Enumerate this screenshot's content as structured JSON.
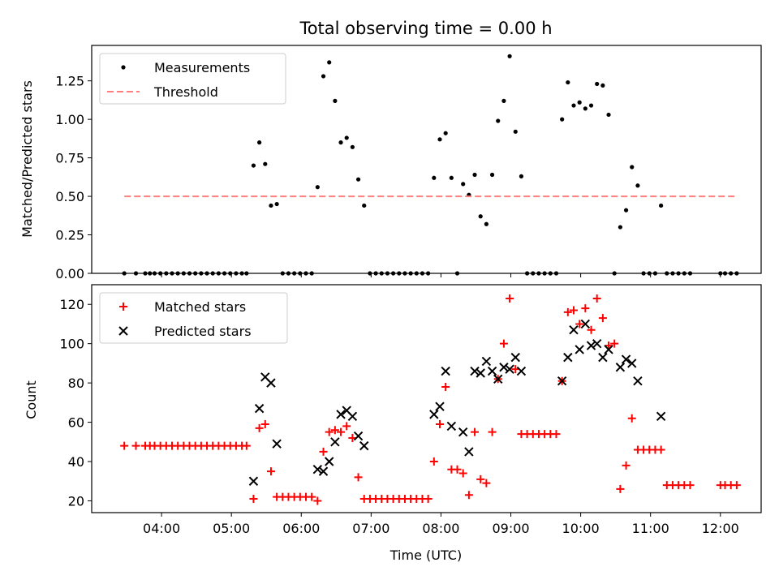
{
  "chart_data": [
    {
      "type": "scatter",
      "title": "Total observing time = 0.00 h",
      "xlabel": "",
      "ylabel": "Matched/Predicted stars",
      "xlim": [
        "03:00",
        "12:35"
      ],
      "ylim": [
        0,
        1.48
      ],
      "yticks": [
        0.0,
        0.25,
        0.5,
        0.75,
        1.0,
        1.25
      ],
      "ytick_labels": [
        "0.00",
        "0.25",
        "0.50",
        "0.75",
        "1.00",
        "1.25"
      ],
      "xticks": [
        "04:00",
        "05:00",
        "06:00",
        "07:00",
        "08:00",
        "09:00",
        "10:00",
        "11:00",
        "12:00"
      ],
      "legend": {
        "placement": "top-left",
        "entries": [
          "Measurements",
          "Threshold"
        ]
      },
      "series": [
        {
          "name": "Measurements",
          "marker": "dot",
          "color": "#000000",
          "points": [
            [
              "03:28",
              0
            ],
            [
              "03:38",
              0
            ],
            [
              "03:46",
              0
            ],
            [
              "03:50",
              0
            ],
            [
              "03:54",
              0
            ],
            [
              "03:59",
              0
            ],
            [
              "04:04",
              0
            ],
            [
              "04:09",
              0
            ],
            [
              "04:14",
              0
            ],
            [
              "04:19",
              0
            ],
            [
              "04:24",
              0
            ],
            [
              "04:29",
              0
            ],
            [
              "04:34",
              0
            ],
            [
              "04:39",
              0
            ],
            [
              "04:44",
              0
            ],
            [
              "04:49",
              0
            ],
            [
              "04:54",
              0
            ],
            [
              "04:59",
              0
            ],
            [
              "05:04",
              0
            ],
            [
              "05:09",
              0
            ],
            [
              "05:13",
              0
            ],
            [
              "05:19",
              0.7
            ],
            [
              "05:24",
              0.85
            ],
            [
              "05:29",
              0.71
            ],
            [
              "05:34",
              0.44
            ],
            [
              "05:39",
              0.45
            ],
            [
              "05:44",
              0
            ],
            [
              "05:49",
              0
            ],
            [
              "05:54",
              0
            ],
            [
              "05:59",
              0
            ],
            [
              "06:04",
              0
            ],
            [
              "06:09",
              0
            ],
            [
              "06:14",
              0.56
            ],
            [
              "06:19",
              1.28
            ],
            [
              "06:24",
              1.37
            ],
            [
              "06:29",
              1.12
            ],
            [
              "06:34",
              0.85
            ],
            [
              "06:39",
              0.88
            ],
            [
              "06:44",
              0.82
            ],
            [
              "06:49",
              0.61
            ],
            [
              "06:54",
              0.44
            ],
            [
              "06:59",
              0
            ],
            [
              "07:04",
              0
            ],
            [
              "07:09",
              0
            ],
            [
              "07:14",
              0
            ],
            [
              "07:19",
              0
            ],
            [
              "07:24",
              0
            ],
            [
              "07:29",
              0
            ],
            [
              "07:34",
              0
            ],
            [
              "07:39",
              0
            ],
            [
              "07:44",
              0
            ],
            [
              "07:49",
              0
            ],
            [
              "07:54",
              0.62
            ],
            [
              "07:59",
              0.87
            ],
            [
              "08:04",
              0.91
            ],
            [
              "08:09",
              0.62
            ],
            [
              "08:14",
              0
            ],
            [
              "08:19",
              0.58
            ],
            [
              "08:24",
              0.51
            ],
            [
              "08:29",
              0.64
            ],
            [
              "08:34",
              0.37
            ],
            [
              "08:39",
              0.32
            ],
            [
              "08:44",
              0.64
            ],
            [
              "08:49",
              0.99
            ],
            [
              "08:54",
              1.12
            ],
            [
              "08:59",
              1.41
            ],
            [
              "09:04",
              0.92
            ],
            [
              "09:09",
              0.63
            ],
            [
              "09:14",
              0
            ],
            [
              "09:19",
              0
            ],
            [
              "09:24",
              0
            ],
            [
              "09:29",
              0
            ],
            [
              "09:34",
              0
            ],
            [
              "09:39",
              0
            ],
            [
              "09:44",
              1.0
            ],
            [
              "09:49",
              1.24
            ],
            [
              "09:54",
              1.09
            ],
            [
              "09:59",
              1.11
            ],
            [
              "10:04",
              1.07
            ],
            [
              "10:09",
              1.09
            ],
            [
              "10:14",
              1.23
            ],
            [
              "10:19",
              1.22
            ],
            [
              "10:24",
              1.03
            ],
            [
              "10:29",
              0
            ],
            [
              "10:34",
              0.3
            ],
            [
              "10:39",
              0.41
            ],
            [
              "10:44",
              0.69
            ],
            [
              "10:49",
              0.57
            ],
            [
              "10:54",
              0
            ],
            [
              "10:59",
              0
            ],
            [
              "11:04",
              0
            ],
            [
              "11:09",
              0.44
            ],
            [
              "11:14",
              0
            ],
            [
              "11:19",
              0
            ],
            [
              "11:24",
              0
            ],
            [
              "11:29",
              0
            ],
            [
              "11:34",
              0
            ],
            [
              "12:00",
              0
            ],
            [
              "12:04",
              0
            ],
            [
              "12:09",
              0
            ],
            [
              "12:14",
              0
            ]
          ]
        },
        {
          "name": "Threshold",
          "type": "line",
          "style": "dashed",
          "color": "#ff7f7f",
          "points": [
            [
              "03:28",
              0.5
            ],
            [
              "12:14",
              0.5
            ]
          ]
        }
      ]
    },
    {
      "type": "scatter",
      "title": "",
      "xlabel": "Time (UTC)",
      "ylabel": "Count",
      "xlim": [
        "03:00",
        "12:35"
      ],
      "ylim": [
        14,
        130
      ],
      "yticks": [
        20,
        40,
        60,
        80,
        100,
        120
      ],
      "ytick_labels": [
        "20",
        "40",
        "60",
        "80",
        "100",
        "120"
      ],
      "xticks": [
        "04:00",
        "05:00",
        "06:00",
        "07:00",
        "08:00",
        "09:00",
        "10:00",
        "11:00",
        "12:00"
      ],
      "legend": {
        "placement": "top-left",
        "entries": [
          "Matched stars",
          "Predicted stars"
        ]
      },
      "series": [
        {
          "name": "Matched stars",
          "marker": "plus",
          "color": "#ff0000",
          "points": [
            [
              "03:28",
              48
            ],
            [
              "03:38",
              48
            ],
            [
              "03:46",
              48
            ],
            [
              "03:50",
              48
            ],
            [
              "03:54",
              48
            ],
            [
              "03:59",
              48
            ],
            [
              "04:04",
              48
            ],
            [
              "04:09",
              48
            ],
            [
              "04:14",
              48
            ],
            [
              "04:19",
              48
            ],
            [
              "04:24",
              48
            ],
            [
              "04:29",
              48
            ],
            [
              "04:34",
              48
            ],
            [
              "04:39",
              48
            ],
            [
              "04:44",
              48
            ],
            [
              "04:49",
              48
            ],
            [
              "04:54",
              48
            ],
            [
              "04:59",
              48
            ],
            [
              "05:04",
              48
            ],
            [
              "05:09",
              48
            ],
            [
              "05:13",
              48
            ],
            [
              "05:19",
              21
            ],
            [
              "05:24",
              57
            ],
            [
              "05:29",
              59
            ],
            [
              "05:34",
              35
            ],
            [
              "05:39",
              22
            ],
            [
              "05:44",
              22
            ],
            [
              "05:49",
              22
            ],
            [
              "05:54",
              22
            ],
            [
              "05:59",
              22
            ],
            [
              "06:04",
              22
            ],
            [
              "06:09",
              22
            ],
            [
              "06:14",
              20
            ],
            [
              "06:19",
              45
            ],
            [
              "06:24",
              55
            ],
            [
              "06:29",
              56
            ],
            [
              "06:34",
              55
            ],
            [
              "06:39",
              58
            ],
            [
              "06:44",
              52
            ],
            [
              "06:49",
              32
            ],
            [
              "06:54",
              21
            ],
            [
              "06:59",
              21
            ],
            [
              "07:04",
              21
            ],
            [
              "07:09",
              21
            ],
            [
              "07:14",
              21
            ],
            [
              "07:19",
              21
            ],
            [
              "07:24",
              21
            ],
            [
              "07:29",
              21
            ],
            [
              "07:34",
              21
            ],
            [
              "07:39",
              21
            ],
            [
              "07:44",
              21
            ],
            [
              "07:49",
              21
            ],
            [
              "07:54",
              40
            ],
            [
              "07:59",
              59
            ],
            [
              "08:04",
              78
            ],
            [
              "08:09",
              36
            ],
            [
              "08:14",
              36
            ],
            [
              "08:19",
              34
            ],
            [
              "08:24",
              23
            ],
            [
              "08:29",
              55
            ],
            [
              "08:34",
              31
            ],
            [
              "08:39",
              29
            ],
            [
              "08:44",
              55
            ],
            [
              "08:49",
              82
            ],
            [
              "08:54",
              100
            ],
            [
              "08:59",
              123
            ],
            [
              "09:04",
              87
            ],
            [
              "09:09",
              54
            ],
            [
              "09:14",
              54
            ],
            [
              "09:19",
              54
            ],
            [
              "09:24",
              54
            ],
            [
              "09:29",
              54
            ],
            [
              "09:34",
              54
            ],
            [
              "09:39",
              54
            ],
            [
              "09:44",
              81
            ],
            [
              "09:49",
              116
            ],
            [
              "09:54",
              117
            ],
            [
              "09:59",
              110
            ],
            [
              "10:04",
              118
            ],
            [
              "10:09",
              107
            ],
            [
              "10:14",
              123
            ],
            [
              "10:19",
              113
            ],
            [
              "10:24",
              99
            ],
            [
              "10:29",
              100
            ],
            [
              "10:34",
              26
            ],
            [
              "10:39",
              38
            ],
            [
              "10:44",
              62
            ],
            [
              "10:49",
              46
            ],
            [
              "10:54",
              46
            ],
            [
              "10:59",
              46
            ],
            [
              "11:04",
              46
            ],
            [
              "11:09",
              46
            ],
            [
              "11:14",
              28
            ],
            [
              "11:19",
              28
            ],
            [
              "11:24",
              28
            ],
            [
              "11:29",
              28
            ],
            [
              "11:34",
              28
            ],
            [
              "12:00",
              28
            ],
            [
              "12:04",
              28
            ],
            [
              "12:09",
              28
            ],
            [
              "12:14",
              28
            ]
          ]
        },
        {
          "name": "Predicted stars",
          "marker": "x",
          "color": "#000000",
          "points": [
            [
              "05:19",
              30
            ],
            [
              "05:24",
              67
            ],
            [
              "05:29",
              83
            ],
            [
              "05:34",
              80
            ],
            [
              "05:39",
              49
            ],
            [
              "06:14",
              36
            ],
            [
              "06:19",
              35
            ],
            [
              "06:24",
              40
            ],
            [
              "06:29",
              50
            ],
            [
              "06:34",
              64
            ],
            [
              "06:39",
              66
            ],
            [
              "06:44",
              63
            ],
            [
              "06:49",
              53
            ],
            [
              "06:54",
              48
            ],
            [
              "07:54",
              64
            ],
            [
              "07:59",
              68
            ],
            [
              "08:04",
              86
            ],
            [
              "08:09",
              58
            ],
            [
              "08:19",
              55
            ],
            [
              "08:24",
              45
            ],
            [
              "08:29",
              86
            ],
            [
              "08:34",
              85
            ],
            [
              "08:39",
              91
            ],
            [
              "08:44",
              86
            ],
            [
              "08:49",
              82
            ],
            [
              "08:54",
              88
            ],
            [
              "08:59",
              87
            ],
            [
              "09:04",
              93
            ],
            [
              "09:09",
              86
            ],
            [
              "09:44",
              81
            ],
            [
              "09:49",
              93
            ],
            [
              "09:54",
              107
            ],
            [
              "09:59",
              97
            ],
            [
              "10:04",
              110
            ],
            [
              "10:09",
              99
            ],
            [
              "10:14",
              100
            ],
            [
              "10:19",
              93
            ],
            [
              "10:24",
              97
            ],
            [
              "10:34",
              88
            ],
            [
              "10:39",
              92
            ],
            [
              "10:44",
              90
            ],
            [
              "10:49",
              81
            ],
            [
              "11:09",
              63
            ]
          ]
        }
      ]
    }
  ]
}
